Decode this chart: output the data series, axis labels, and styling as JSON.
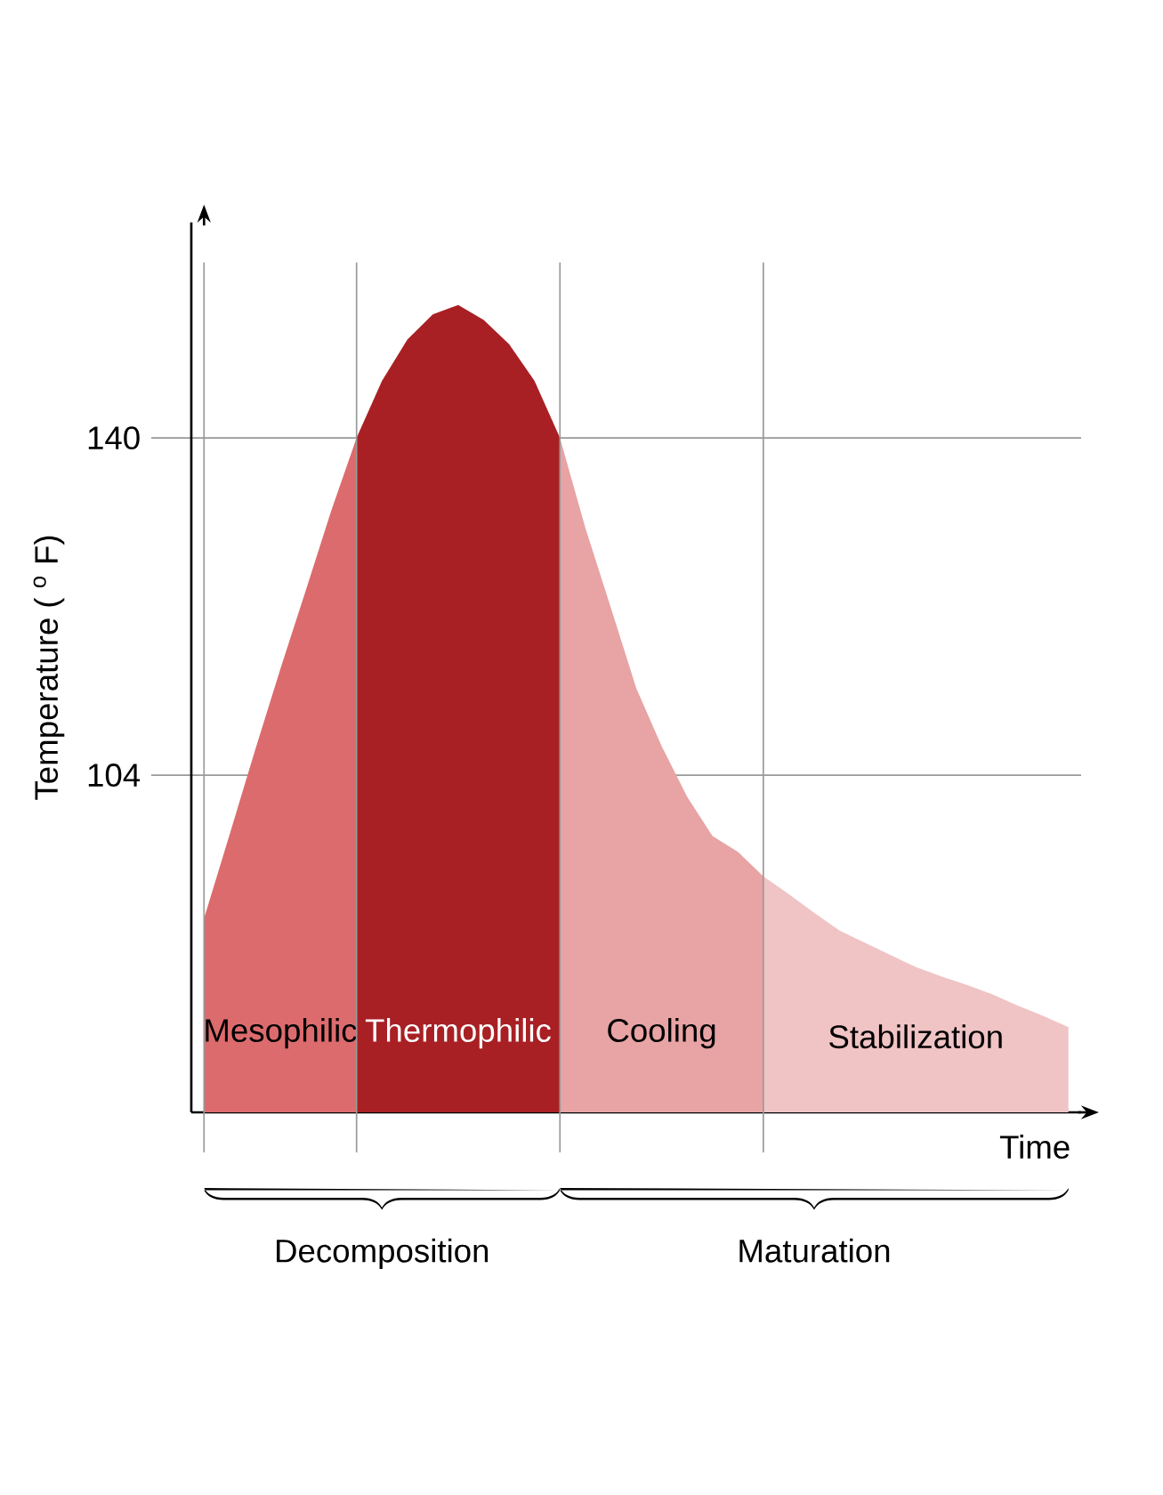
{
  "chart_data": {
    "type": "area",
    "xlabel": "Time",
    "ylabel": "Temperature ( $^{o}$ F)",
    "categories": [
      null,
      null,
      null,
      null,
      null,
      null,
      null,
      null,
      null,
      null,
      null,
      null,
      null,
      null,
      null,
      null,
      null,
      null,
      null,
      null,
      null,
      null,
      null,
      null,
      null,
      null,
      null,
      null,
      null,
      null,
      null,
      null,
      null,
      null,
      null
    ],
    "ylim": [
      68,
      163
    ],
    "yticks": [
      104,
      140
    ],
    "tick_labels": "y",
    "grid": true,
    "series": [
      {
        "name": "Mesophilic",
        "color": "#dc6b6d",
        "values": [
          88.7,
          97.6,
          106.6,
          115.3,
          123.7,
          132.2,
          140,
          null,
          null,
          null,
          null,
          null,
          null,
          null,
          null,
          null,
          null,
          null,
          null,
          null,
          null,
          null,
          null,
          null,
          null,
          null,
          null,
          null,
          null,
          null,
          null,
          null,
          null,
          null,
          null
        ]
      },
      {
        "name": "Thermophilic",
        "color": "#a82024",
        "values": [
          null,
          null,
          null,
          null,
          null,
          null,
          140,
          146.1,
          150.5,
          153.2,
          154.2,
          152.6,
          150.0,
          146.1,
          140,
          null,
          null,
          null,
          null,
          null,
          null,
          null,
          null,
          null,
          null,
          null,
          null,
          null,
          null,
          null,
          null,
          null,
          null,
          null,
          null
        ]
      },
      {
        "name": "Cooling",
        "color": "#e8a3a4",
        "values": [
          null,
          null,
          null,
          null,
          null,
          null,
          null,
          null,
          null,
          null,
          null,
          null,
          null,
          null,
          140,
          130.4,
          121.9,
          113.3,
          107.1,
          101.7,
          97.5,
          95.8,
          93.2,
          null,
          null,
          null,
          null,
          null,
          null,
          null,
          null,
          null,
          null,
          null,
          null
        ]
      },
      {
        "name": "Stabilization",
        "color": "#f0c3c4",
        "values": [
          null,
          null,
          null,
          null,
          null,
          null,
          null,
          null,
          null,
          null,
          null,
          null,
          null,
          null,
          null,
          null,
          null,
          null,
          null,
          null,
          null,
          null,
          93.2,
          91.3,
          89.3,
          87.4,
          86.1,
          84.8,
          83.5,
          82.5,
          81.6,
          80.6,
          79.4,
          78.3,
          77.1
        ]
      }
    ],
    "annotations": [
      "Decomposition",
      "Maturation"
    ]
  }
}
